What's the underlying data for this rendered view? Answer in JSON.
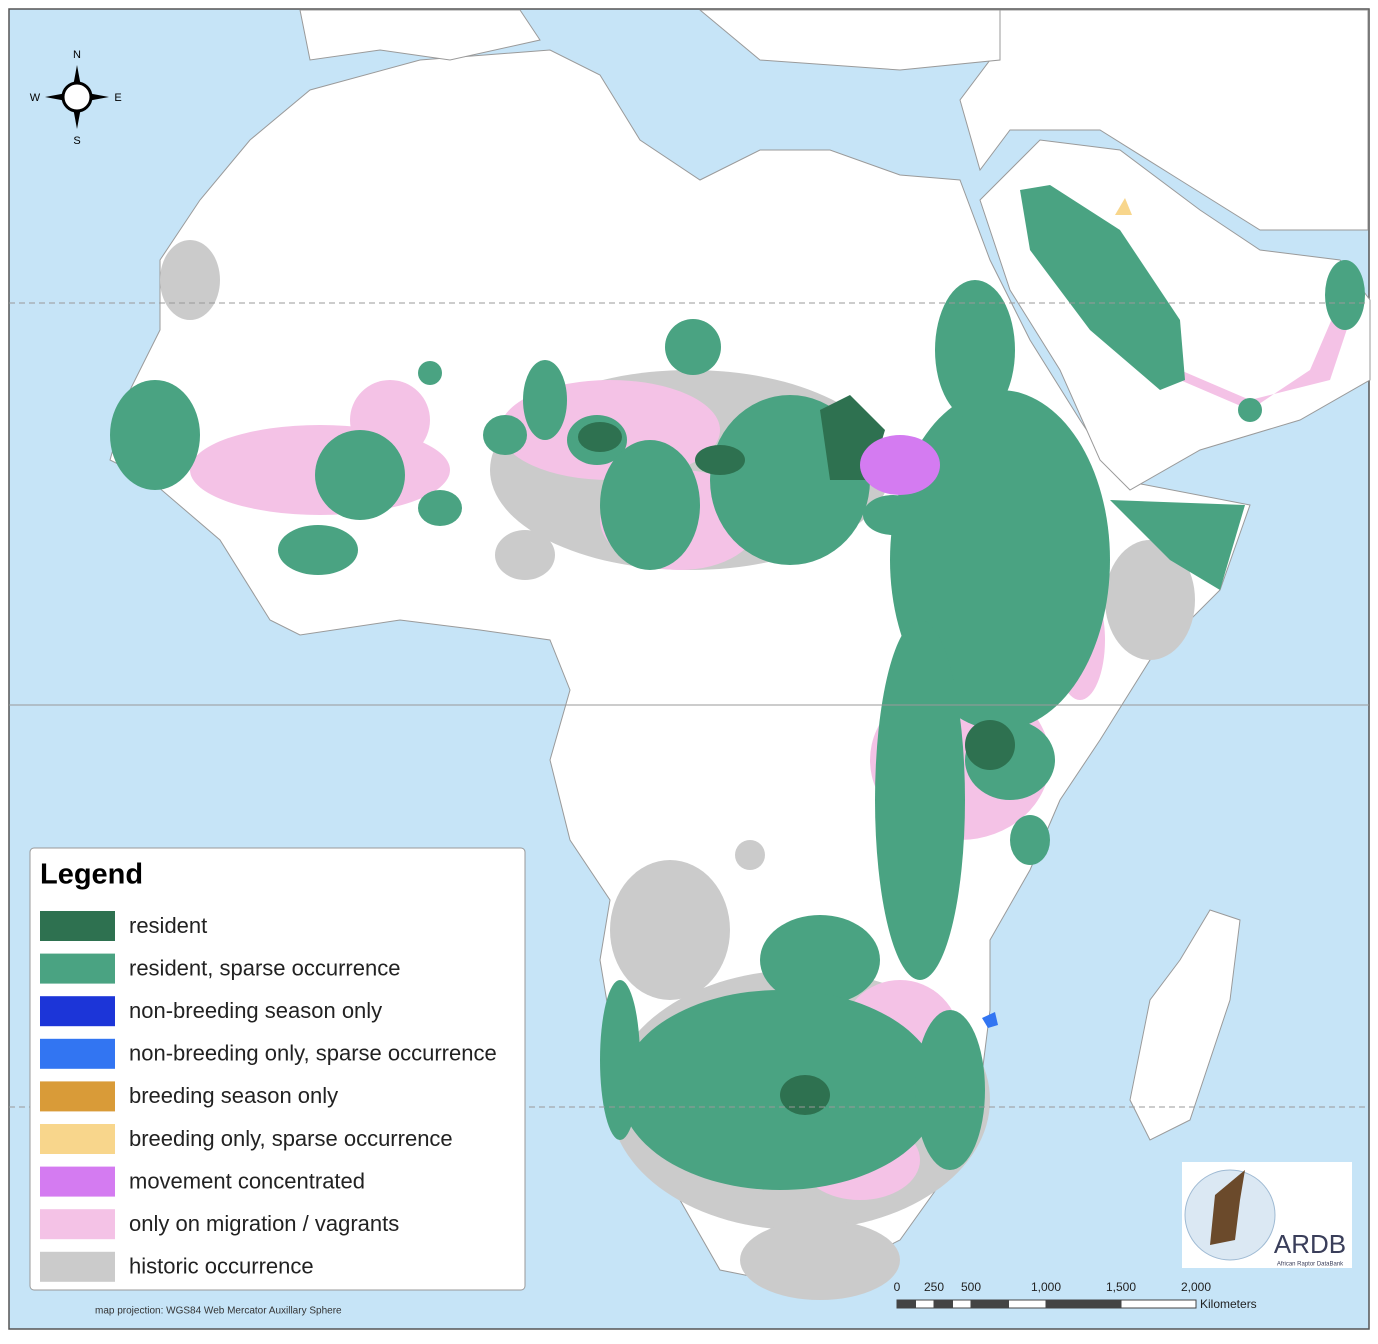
{
  "compass": {
    "north": "N",
    "south": "S",
    "east": "E",
    "west": "W"
  },
  "legend": {
    "title": "Legend",
    "items": [
      {
        "label": "resident",
        "color": "#2e7150"
      },
      {
        "label": "resident, sparse occurrence",
        "color": "#4aa382"
      },
      {
        "label": "non-breeding season only",
        "color": "#1c35d8"
      },
      {
        "label": "non-breeding only, sparse occurrence",
        "color": "#3275f2"
      },
      {
        "label": "breeding season only",
        "color": "#d99b38"
      },
      {
        "label": "breeding only, sparse occurrence",
        "color": "#f8d68c"
      },
      {
        "label": "movement concentrated",
        "color": "#d47bf1"
      },
      {
        "label": "only on migration / vagrants",
        "color": "#f4c2e6"
      },
      {
        "label": "historic occurrence",
        "color": "#cbcbcb"
      }
    ]
  },
  "projection_note": "map projection: WGS84 Web Mercator Auxillary Sphere",
  "scale_bar": {
    "labels": [
      "0",
      "250",
      "500",
      "1,000",
      "1,500",
      "2,000"
    ],
    "unit": "Kilometers"
  },
  "logo": {
    "name": "ARDB",
    "subtitle": "African Raptor DataBank"
  }
}
